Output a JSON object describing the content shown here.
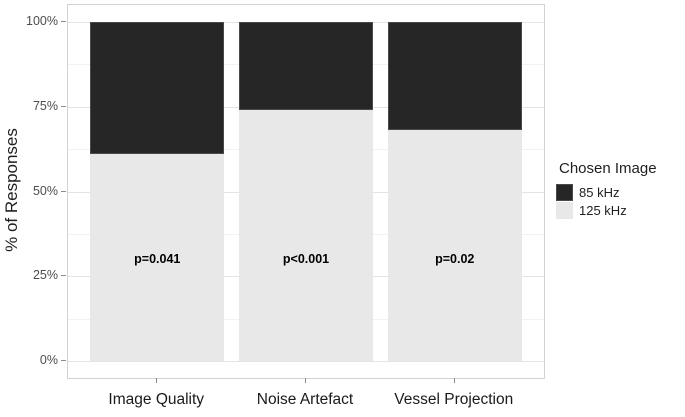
{
  "legend": {
    "title": "Chosen Image",
    "items": [
      {
        "label": "85 kHz",
        "color": "#262626",
        "border": "#4a4a4a"
      },
      {
        "label": "125 kHz",
        "color": "#e8e8e8",
        "border": "#e8e8e8"
      }
    ],
    "position": "right"
  },
  "chart_data": {
    "type": "bar",
    "stacked": true,
    "orientation": "vertical",
    "title": "",
    "xlabel": "",
    "ylabel": "% of Responses",
    "categories": [
      "Image Quality",
      "Noise Artefact",
      "Vessel Projection"
    ],
    "series": [
      {
        "name": "125 kHz",
        "color": "#e8e8e8",
        "values": [
          61,
          74,
          68
        ]
      },
      {
        "name": "85 kHz",
        "color": "#262626",
        "values": [
          39,
          26,
          32
        ]
      }
    ],
    "annotations": [
      {
        "category": "Image Quality",
        "text": "p=0.041",
        "y_pct": 30
      },
      {
        "category": "Noise Artefact",
        "text": "p<0.001",
        "y_pct": 30
      },
      {
        "category": "Vessel Projection",
        "text": "p=0.02",
        "y_pct": 30
      }
    ],
    "ylim": [
      0,
      100
    ],
    "ytick_labels": [
      "0%",
      "25%",
      "50%",
      "75%",
      "100%"
    ],
    "ytick_values": [
      0,
      25,
      50,
      75,
      100
    ],
    "minor_gridlines": [
      12.5,
      37.5,
      62.5,
      87.5
    ],
    "grid": true,
    "legend_position": "right",
    "legend_title": "Chosen Image"
  },
  "colors": {
    "dark_fill": "#262626",
    "light_fill": "#e8e8e8",
    "major_grid": "#e4e4e4",
    "minor_grid": "#f2f2f2",
    "panel_border": "#d2d2d2",
    "tick_label": "#4d4d4d",
    "axis_title": "#1f1f1f"
  }
}
